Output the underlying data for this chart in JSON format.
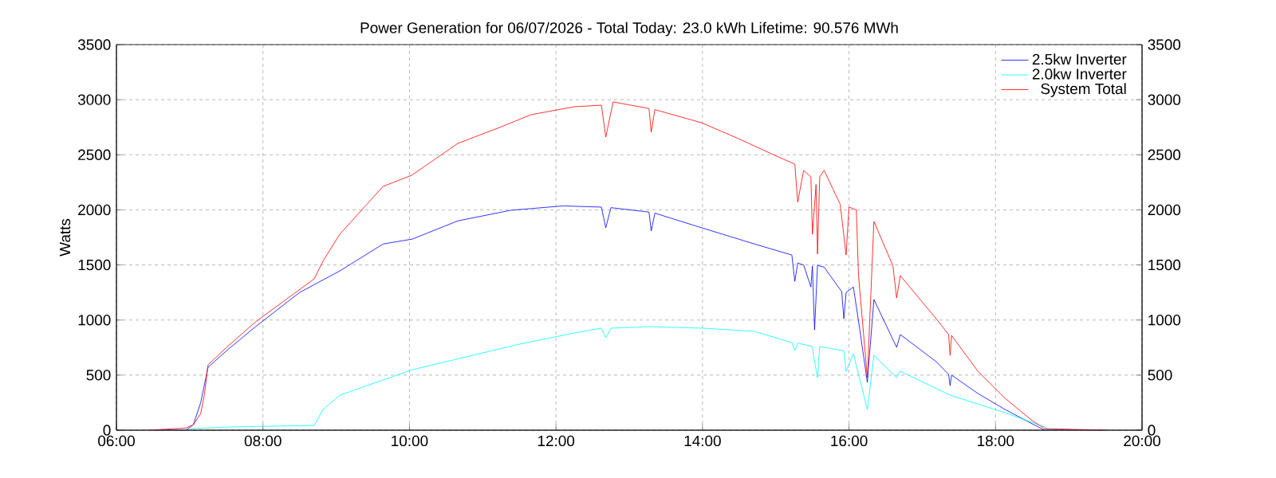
{
  "chart_data": {
    "type": "line",
    "title": "Power Generation for 06/07/2026 - Total Today: 23.0 kWh   Lifetime: 90.576 MWh",
    "ylabel": "Watts",
    "xlim": [
      6,
      20
    ],
    "xticks": [
      {
        "value": 6,
        "label": "06:00"
      },
      {
        "value": 8,
        "label": "08:00"
      },
      {
        "value": 10,
        "label": "10:00"
      },
      {
        "value": 12,
        "label": "12:00"
      },
      {
        "value": 14,
        "label": "14:00"
      },
      {
        "value": 16,
        "label": "16:00"
      },
      {
        "value": 18,
        "label": "18:00"
      },
      {
        "value": 20,
        "label": "20:00"
      }
    ],
    "ylim": [
      0,
      3500
    ],
    "yticks": [
      0,
      500,
      1000,
      1500,
      2000,
      2500,
      3000,
      3500
    ],
    "y2lim": [
      0,
      3500
    ],
    "y2ticks": [
      0,
      500,
      1000,
      1500,
      2000,
      2500,
      3000,
      3500
    ],
    "grid": true,
    "legend": "top right",
    "marker": "none",
    "line_style": "solid",
    "series": [
      {
        "name": "2.5kw Inverter",
        "color": "#0000ff",
        "x": [
          6.5,
          6.95,
          7.05,
          7.15,
          7.25,
          7.5,
          7.9,
          8.5,
          9.05,
          9.64,
          10.04,
          10.66,
          11.38,
          12.1,
          12.62,
          12.68,
          12.75,
          13.27,
          13.3,
          13.35,
          13.99,
          14.71,
          15.22,
          15.26,
          15.3,
          15.38,
          15.48,
          15.5,
          15.53,
          15.57,
          15.6,
          15.66,
          15.9,
          15.93,
          15.96,
          16.06,
          16.15,
          16.25,
          16.34,
          16.65,
          16.7,
          17.19,
          17.36,
          17.38,
          17.4,
          17.76,
          18.13,
          18.5,
          18.67,
          19.5
        ],
        "values": [
          0,
          0,
          50,
          250,
          570,
          720,
          940,
          1250,
          1446,
          1690,
          1735,
          1900,
          1996,
          2036,
          2025,
          1837,
          2020,
          1980,
          1808,
          1970,
          1837,
          1690,
          1590,
          1350,
          1518,
          1500,
          1300,
          1490,
          910,
          1500,
          1490,
          1480,
          1258,
          1012,
          1250,
          1300,
          900,
          434,
          1186,
          752,
          868,
          622,
          506,
          405,
          500,
          333,
          188,
          58,
          0,
          0
        ]
      },
      {
        "name": "2.0kw Inverter",
        "color": "#00ffff",
        "x": [
          7.0,
          7.55,
          8.7,
          8.82,
          9.05,
          10.04,
          11.5,
          12.25,
          12.62,
          12.68,
          12.75,
          13.27,
          14.0,
          14.71,
          15.22,
          15.26,
          15.3,
          15.5,
          15.53,
          15.57,
          15.6,
          15.66,
          15.93,
          15.96,
          16.06,
          16.25,
          16.34,
          16.65,
          16.7,
          17.38,
          18.13,
          18.67,
          18.75
        ],
        "values": [
          14,
          29,
          43,
          188,
          318,
          549,
          781,
          882,
          926,
          839,
          926,
          940,
          926,
          897,
          795,
          723,
          790,
          760,
          622,
          477,
          760,
          752,
          720,
          535,
          694,
          188,
          680,
          477,
          535,
          318,
          159,
          29,
          0
        ]
      },
      {
        "name": "System Total",
        "color": "#ff0000",
        "x": [
          6.45,
          6.95,
          7.05,
          7.15,
          7.2,
          7.25,
          7.5,
          7.9,
          8.7,
          8.83,
          9.05,
          9.64,
          10.03,
          10.66,
          11.23,
          11.66,
          12.25,
          12.62,
          12.68,
          12.78,
          13.27,
          13.3,
          13.35,
          13.99,
          14.49,
          15.01,
          15.26,
          15.3,
          15.38,
          15.48,
          15.5,
          15.55,
          15.57,
          15.6,
          15.66,
          15.88,
          15.96,
          16.0,
          16.1,
          16.13,
          16.25,
          16.34,
          16.6,
          16.65,
          16.7,
          17.19,
          17.36,
          17.38,
          17.4,
          17.76,
          18.13,
          18.5,
          18.67,
          19.5
        ],
        "values": [
          0,
          20,
          50,
          150,
          320,
          593,
          750,
          984,
          1374,
          1547,
          1780,
          2213,
          2314,
          2603,
          2748,
          2864,
          2936,
          2950,
          2661,
          2980,
          2920,
          2705,
          2910,
          2790,
          2647,
          2488,
          2415,
          2070,
          2357,
          2300,
          1780,
          2230,
          1600,
          2300,
          2360,
          2050,
          1590,
          2025,
          2000,
          1400,
          477,
          1895,
          1490,
          1200,
          1403,
          1012,
          868,
          680,
          860,
          535,
          290,
          87,
          14,
          0
        ]
      }
    ]
  }
}
